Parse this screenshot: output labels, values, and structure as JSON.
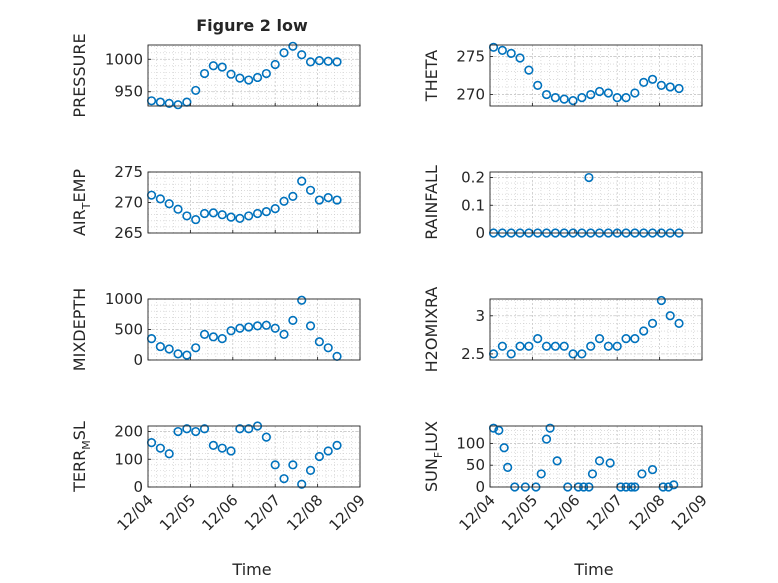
{
  "figure_title": "Figure 2 low",
  "colors": {
    "marker": "#0072BD",
    "axis": "#262626",
    "grid": "#c8c8c8",
    "background": "#ffffff"
  },
  "x_tick_labels": [
    "12/04",
    "12/05",
    "12/06",
    "12/07",
    "12/08",
    "12/09"
  ],
  "x_label": "Time",
  "chart_data": [
    {
      "type": "scatter",
      "ylabel": "PRESSURE",
      "grid": true,
      "marker": "circle-open",
      "xlim": [
        "12/04",
        "12/09"
      ],
      "ylim": [
        928,
        1022
      ],
      "yticks": [
        950,
        1000
      ],
      "ytick_labels": [
        "950",
        "1000"
      ],
      "x": [
        "12/04 02:00",
        "12/04 07:00",
        "12/04 12:00",
        "12/04 17:00",
        "12/04 22:00",
        "12/05 03:00",
        "12/05 08:00",
        "12/05 13:00",
        "12/05 18:00",
        "12/05 23:00",
        "12/06 04:00",
        "12/06 09:00",
        "12/06 14:00",
        "12/06 19:00",
        "12/07 00:00",
        "12/07 05:00",
        "12/07 10:00",
        "12/07 15:00",
        "12/07 20:00",
        "12/08 01:00",
        "12/08 06:00",
        "12/08 11:00"
      ],
      "y": [
        936,
        934,
        932,
        930,
        934,
        952,
        978,
        990,
        988,
        977,
        971,
        968,
        972,
        978,
        992,
        1010,
        1020,
        1007,
        996,
        998,
        997,
        996
      ]
    },
    {
      "type": "scatter",
      "ylabel": "THETA",
      "grid": true,
      "marker": "circle-open",
      "xlim": [
        "12/04",
        "12/09"
      ],
      "ylim": [
        268.5,
        276.5
      ],
      "yticks": [
        270,
        275
      ],
      "ytick_labels": [
        "270",
        "275"
      ],
      "x": [
        "12/04 02:00",
        "12/04 07:00",
        "12/04 12:00",
        "12/04 17:00",
        "12/04 22:00",
        "12/05 03:00",
        "12/05 08:00",
        "12/05 13:00",
        "12/05 18:00",
        "12/05 23:00",
        "12/06 04:00",
        "12/06 09:00",
        "12/06 14:00",
        "12/06 19:00",
        "12/07 00:00",
        "12/07 05:00",
        "12/07 10:00",
        "12/07 15:00",
        "12/07 20:00",
        "12/08 01:00",
        "12/08 06:00",
        "12/08 11:00"
      ],
      "y": [
        276.2,
        275.8,
        275.4,
        274.8,
        273.2,
        271.2,
        270.0,
        269.6,
        269.4,
        269.2,
        269.6,
        270.0,
        270.4,
        270.2,
        269.6,
        269.6,
        270.2,
        271.6,
        272.0,
        271.2,
        271.0,
        270.8
      ]
    },
    {
      "type": "scatter",
      "ylabel": "AIR_TEMP",
      "grid": true,
      "marker": "circle-open",
      "xlim": [
        "12/04",
        "12/09"
      ],
      "ylim": [
        265,
        275
      ],
      "yticks": [
        265,
        270,
        275
      ],
      "ytick_labels": [
        "265",
        "270",
        "275"
      ],
      "x": [
        "12/04 02:00",
        "12/04 07:00",
        "12/04 12:00",
        "12/04 17:00",
        "12/04 22:00",
        "12/05 03:00",
        "12/05 08:00",
        "12/05 13:00",
        "12/05 18:00",
        "12/05 23:00",
        "12/06 04:00",
        "12/06 09:00",
        "12/06 14:00",
        "12/06 19:00",
        "12/07 00:00",
        "12/07 05:00",
        "12/07 10:00",
        "12/07 15:00",
        "12/07 20:00",
        "12/08 01:00",
        "12/08 06:00",
        "12/08 11:00"
      ],
      "y": [
        271.2,
        270.6,
        269.8,
        268.9,
        267.8,
        267.2,
        268.2,
        268.3,
        268.0,
        267.6,
        267.4,
        267.8,
        268.2,
        268.5,
        269.0,
        270.2,
        271.0,
        273.5,
        272.0,
        270.4,
        270.8,
        270.4
      ]
    },
    {
      "type": "scatter",
      "ylabel": "RAINFALL",
      "grid": true,
      "marker": "circle-open",
      "xlim": [
        "12/04",
        "12/09"
      ],
      "ylim": [
        0,
        0.22
      ],
      "yticks": [
        0,
        0.1,
        0.2
      ],
      "ytick_labels": [
        "0",
        "0.1",
        "0.2"
      ],
      "x": [
        "12/04 02:00",
        "12/04 07:00",
        "12/04 12:00",
        "12/04 17:00",
        "12/04 22:00",
        "12/05 03:00",
        "12/05 08:00",
        "12/05 13:00",
        "12/05 18:00",
        "12/05 23:00",
        "12/06 04:00",
        "12/06 09:00",
        "12/06 14:00",
        "12/06 19:00",
        "12/07 00:00",
        "12/07 05:00",
        "12/07 10:00",
        "12/07 15:00",
        "12/07 20:00",
        "12/08 01:00",
        "12/08 06:00",
        "12/08 11:00",
        "12/06 08:00"
      ],
      "y": [
        0,
        0,
        0,
        0,
        0,
        0,
        0,
        0,
        0,
        0,
        0,
        0,
        0,
        0,
        0,
        0,
        0,
        0,
        0,
        0,
        0,
        0,
        0.2
      ]
    },
    {
      "type": "scatter",
      "ylabel": "MIXDEPTH",
      "grid": true,
      "marker": "circle-open",
      "xlim": [
        "12/04",
        "12/09"
      ],
      "ylim": [
        0,
        1000
      ],
      "yticks": [
        0,
        500,
        1000
      ],
      "ytick_labels": [
        "0",
        "500",
        "1000"
      ],
      "x": [
        "12/04 02:00",
        "12/04 07:00",
        "12/04 12:00",
        "12/04 17:00",
        "12/04 22:00",
        "12/05 03:00",
        "12/05 08:00",
        "12/05 13:00",
        "12/05 18:00",
        "12/05 23:00",
        "12/06 04:00",
        "12/06 09:00",
        "12/06 14:00",
        "12/06 19:00",
        "12/07 00:00",
        "12/07 05:00",
        "12/07 10:00",
        "12/07 15:00",
        "12/07 20:00",
        "12/08 01:00",
        "12/08 06:00",
        "12/08 11:00"
      ],
      "y": [
        350,
        220,
        180,
        100,
        80,
        200,
        420,
        380,
        350,
        480,
        520,
        540,
        560,
        570,
        520,
        420,
        650,
        980,
        560,
        300,
        200,
        60
      ]
    },
    {
      "type": "scatter",
      "ylabel": "H2OMIXRA",
      "grid": true,
      "marker": "circle-open",
      "xlim": [
        "12/04",
        "12/09"
      ],
      "ylim": [
        2.42,
        3.22
      ],
      "yticks": [
        2.5,
        3
      ],
      "ytick_labels": [
        "2.5",
        "3"
      ],
      "x": [
        "12/04 02:00",
        "12/04 07:00",
        "12/04 12:00",
        "12/04 17:00",
        "12/04 22:00",
        "12/05 03:00",
        "12/05 08:00",
        "12/05 13:00",
        "12/05 18:00",
        "12/05 23:00",
        "12/06 04:00",
        "12/06 09:00",
        "12/06 14:00",
        "12/06 19:00",
        "12/07 00:00",
        "12/07 05:00",
        "12/07 10:00",
        "12/07 15:00",
        "12/07 20:00",
        "12/08 01:00",
        "12/08 06:00",
        "12/08 11:00"
      ],
      "y": [
        2.5,
        2.6,
        2.5,
        2.6,
        2.6,
        2.7,
        2.6,
        2.6,
        2.6,
        2.5,
        2.5,
        2.6,
        2.7,
        2.6,
        2.6,
        2.7,
        2.7,
        2.8,
        2.9,
        3.2,
        3.0,
        2.9
      ]
    },
    {
      "type": "scatter",
      "ylabel": "TERR_MSL",
      "grid": true,
      "marker": "circle-open",
      "xlim": [
        "12/04",
        "12/09"
      ],
      "ylim": [
        0,
        220
      ],
      "yticks": [
        0,
        100,
        200
      ],
      "ytick_labels": [
        "0",
        "100",
        "200"
      ],
      "x": [
        "12/04 02:00",
        "12/04 07:00",
        "12/04 12:00",
        "12/04 17:00",
        "12/04 22:00",
        "12/05 03:00",
        "12/05 08:00",
        "12/05 13:00",
        "12/05 18:00",
        "12/05 23:00",
        "12/06 04:00",
        "12/06 09:00",
        "12/06 14:00",
        "12/06 19:00",
        "12/07 00:00",
        "12/07 05:00",
        "12/07 10:00",
        "12/07 15:00",
        "12/07 20:00",
        "12/08 01:00",
        "12/08 06:00",
        "12/08 11:00"
      ],
      "y": [
        160,
        140,
        120,
        200,
        210,
        200,
        210,
        150,
        140,
        130,
        210,
        210,
        220,
        180,
        80,
        30,
        80,
        10,
        60,
        110,
        130,
        150
      ]
    },
    {
      "type": "scatter",
      "ylabel": "SUN_FLUX",
      "grid": true,
      "marker": "circle-open",
      "xlim": [
        "12/04",
        "12/09"
      ],
      "ylim": [
        0,
        140
      ],
      "yticks": [
        0,
        50,
        100
      ],
      "ytick_labels": [
        "0",
        "50",
        "100"
      ],
      "x": [
        "12/04 02:00",
        "12/04 05:00",
        "12/04 08:00",
        "12/04 10:00",
        "12/04 14:00",
        "12/04 20:00",
        "12/05 02:00",
        "12/05 05:00",
        "12/05 08:00",
        "12/05 10:00",
        "12/05 14:00",
        "12/05 20:00",
        "12/06 02:00",
        "12/06 05:00",
        "12/06 08:00",
        "12/06 10:00",
        "12/06 14:00",
        "12/06 20:00",
        "12/07 02:00",
        "12/07 05:00",
        "12/07 08:00",
        "12/07 10:00",
        "12/07 14:00",
        "12/07 20:00",
        "12/08 02:00",
        "12/08 05:00",
        "12/08 08:00"
      ],
      "y": [
        135,
        130,
        90,
        45,
        0,
        0,
        0,
        30,
        110,
        135,
        60,
        0,
        0,
        0,
        0,
        30,
        60,
        55,
        0,
        0,
        0,
        0,
        30,
        40,
        0,
        0,
        5
      ]
    }
  ]
}
